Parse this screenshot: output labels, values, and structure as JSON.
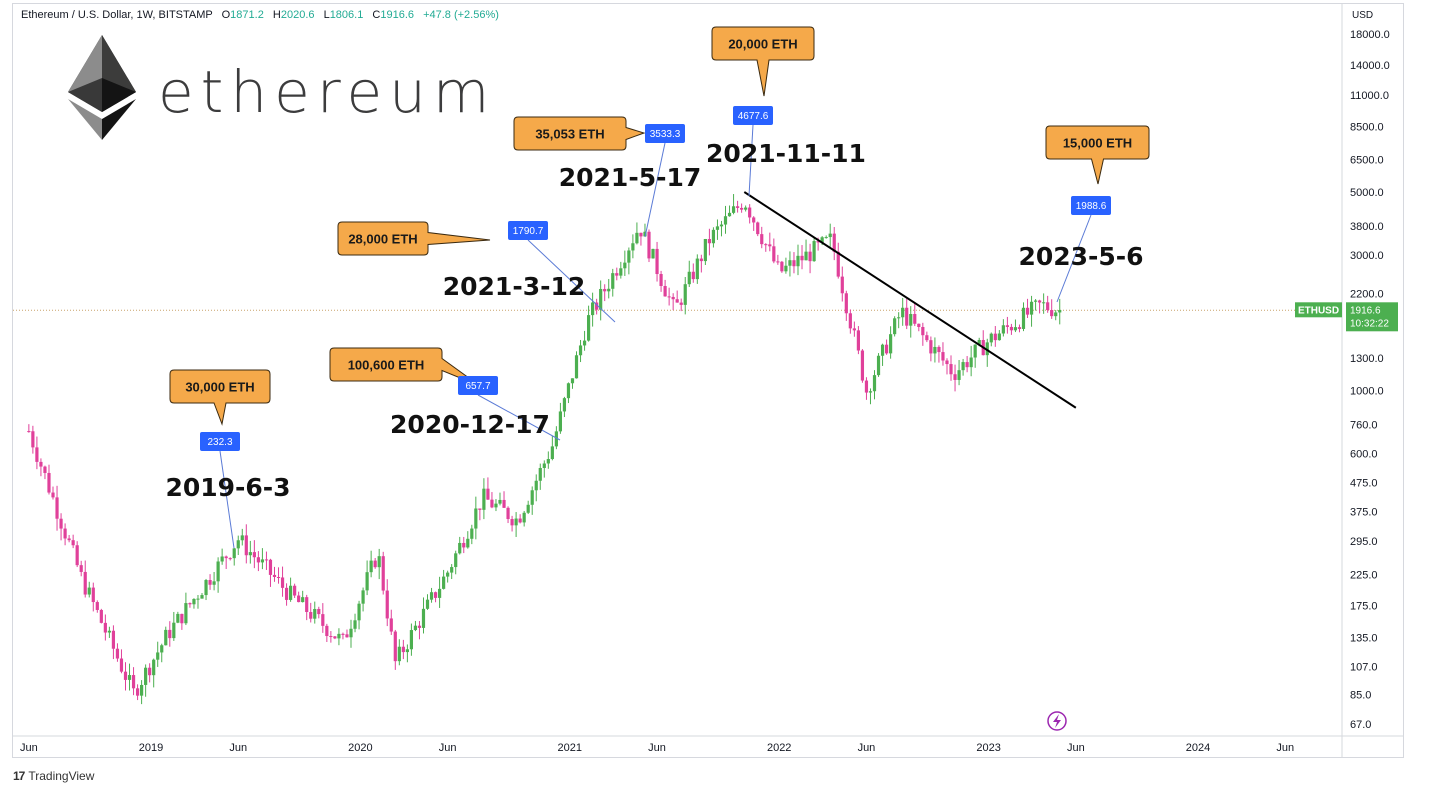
{
  "header": {
    "symbol": "Ethereum / U.S. Dollar, 1W, BITSTAMP",
    "o_label": "O",
    "o_value": "1871.2",
    "h_label": "H",
    "h_value": "2020.6",
    "l_label": "L",
    "l_value": "1806.1",
    "c_label": "C",
    "c_value": "1916.6",
    "change": "+47.8 (+2.56%)"
  },
  "watermark": {
    "text": "ethereum"
  },
  "footer": {
    "brand": "TradingView",
    "logo": "17"
  },
  "colors": {
    "up": "#4caf50",
    "down": "#e0409a",
    "badge_blue": "#2962ff",
    "callout_orange": "#f5a94a",
    "price_tag": "#4caf50",
    "line": "#000000"
  },
  "chart_data": {
    "type": "candlestick",
    "scale": "log",
    "currency_label": "USD",
    "price_axis_ticks": [
      18000.0,
      14000.0,
      11000.0,
      8500.0,
      6500.0,
      5000.0,
      3800.0,
      3000.0,
      2200.0,
      1300.0,
      1000.0,
      760.0,
      600.0,
      475.0,
      375.0,
      295.0,
      225.0,
      175.0,
      135.0,
      107.0,
      85.0,
      67.0
    ],
    "price_axis_tick_labels": [
      "18000.0",
      "14000.0",
      "11000.0",
      "8500.0",
      "6500.0",
      "5000.0",
      "3800.0",
      "3000.0",
      "2200.0",
      "1300.0",
      "1000.0",
      "760.0",
      "600.0",
      "475.0",
      "375.0",
      "295.0",
      "225.0",
      "175.0",
      "135.0",
      "107.0",
      "85.0",
      "67.0"
    ],
    "time_axis_ticks": [
      {
        "label": "Jun",
        "date": "2018-06"
      },
      {
        "label": "2019",
        "date": "2019-01"
      },
      {
        "label": "Jun",
        "date": "2019-06"
      },
      {
        "label": "2020",
        "date": "2020-01"
      },
      {
        "label": "Jun",
        "date": "2020-06"
      },
      {
        "label": "2021",
        "date": "2021-01"
      },
      {
        "label": "Jun",
        "date": "2021-06"
      },
      {
        "label": "2022",
        "date": "2022-01"
      },
      {
        "label": "Jun",
        "date": "2022-06"
      },
      {
        "label": "2023",
        "date": "2023-01"
      },
      {
        "label": "Jun",
        "date": "2023-06"
      },
      {
        "label": "2024",
        "date": "2024-01"
      },
      {
        "label": "Jun",
        "date": "2024-06"
      }
    ],
    "last_price": {
      "symbol": "ETHUSD",
      "value": "1916.6",
      "countdown": "10:32:22"
    },
    "anchors": [
      {
        "date": "2018-06",
        "price": 720
      },
      {
        "date": "2018-09",
        "price": 220
      },
      {
        "date": "2018-12",
        "price": 86
      },
      {
        "date": "2019-02",
        "price": 140
      },
      {
        "date": "2019-06",
        "price": 300
      },
      {
        "date": "2019-09",
        "price": 190
      },
      {
        "date": "2019-12",
        "price": 130
      },
      {
        "date": "2020-02",
        "price": 270
      },
      {
        "date": "2020-03",
        "price": 110
      },
      {
        "date": "2020-06",
        "price": 230
      },
      {
        "date": "2020-08",
        "price": 420
      },
      {
        "date": "2020-10",
        "price": 350
      },
      {
        "date": "2020-12",
        "price": 640
      },
      {
        "date": "2021-02",
        "price": 1750
      },
      {
        "date": "2021-05",
        "price": 3800
      },
      {
        "date": "2021-07",
        "price": 1900
      },
      {
        "date": "2021-09",
        "price": 3400
      },
      {
        "date": "2021-11",
        "price": 4700
      },
      {
        "date": "2022-01",
        "price": 2600
      },
      {
        "date": "2022-04",
        "price": 3400
      },
      {
        "date": "2022-06",
        "price": 1000
      },
      {
        "date": "2022-08",
        "price": 1900
      },
      {
        "date": "2022-11",
        "price": 1150
      },
      {
        "date": "2023-01",
        "price": 1500
      },
      {
        "date": "2023-04",
        "price": 2000
      },
      {
        "date": "2023-05",
        "price": 1916.6
      }
    ],
    "trendline": {
      "from": {
        "date": "2021-11",
        "price": 5000
      },
      "to": {
        "date": "2023-06",
        "price": 870
      }
    },
    "annotations": [
      {
        "date_label": "2019-6-3",
        "price": "232.3",
        "callout": "30,000 ETH",
        "at_date": "2019-06"
      },
      {
        "date_label": "2020-12-17",
        "price": "657.7",
        "callout": "100,600 ETH",
        "at_date": "2020-12"
      },
      {
        "date_label": "2021-3-12",
        "price": "1790.7",
        "callout": "28,000 ETH",
        "at_date": "2021-03"
      },
      {
        "date_label": "2021-5-17",
        "price": "3533.3",
        "callout": "35,053 ETH",
        "at_date": "2021-05"
      },
      {
        "date_label": "2021-11-11",
        "price": "4677.6",
        "callout": "20,000 ETH",
        "at_date": "2021-11"
      },
      {
        "date_label": "2023-5-6",
        "price": "1988.6",
        "callout": "15,000 ETH",
        "at_date": "2023-05"
      }
    ],
    "title": "",
    "xlabel": "",
    "ylabel": ""
  }
}
